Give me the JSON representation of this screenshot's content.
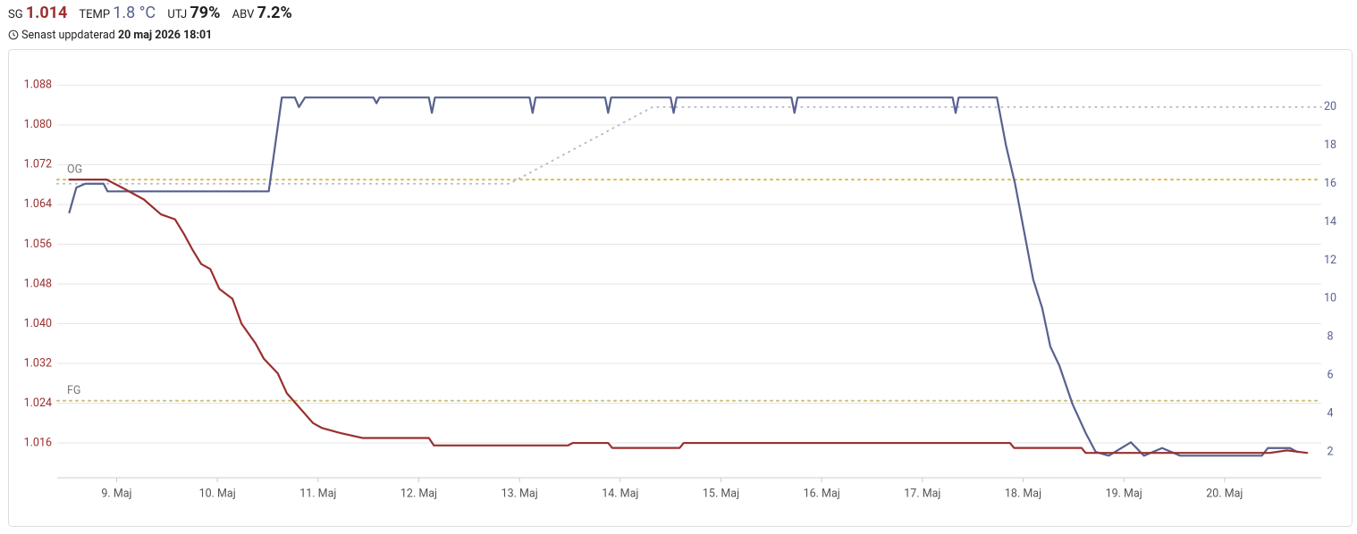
{
  "header": {
    "sg_value": "1.014",
    "temp_value": "1.8 °C",
    "utj_label": "UTJ",
    "utj_value": "79%",
    "abv_label": "ABV",
    "abv_value": "7.2%",
    "updated_label": "Senast uppdaterad",
    "updated_value": "20 maj 2026 18:01"
  },
  "chart_data": {
    "type": "line",
    "xlim": [
      8.41,
      20.96
    ],
    "xticks": [
      {
        "value": 9,
        "label": "9. Maj"
      },
      {
        "value": 10,
        "label": "10. Maj"
      },
      {
        "value": 11,
        "label": "11. Maj"
      },
      {
        "value": 12,
        "label": "12. Maj"
      },
      {
        "value": 13,
        "label": "13. Maj"
      },
      {
        "value": 14,
        "label": "14. Maj"
      },
      {
        "value": 15,
        "label": "15. Maj"
      },
      {
        "value": 16,
        "label": "16. Maj"
      },
      {
        "value": 17,
        "label": "17. Maj"
      },
      {
        "value": 18,
        "label": "18. Maj"
      },
      {
        "value": 19,
        "label": "19. Maj"
      },
      {
        "value": 20,
        "label": "20. Maj"
      }
    ],
    "ylim": [
      1.009,
      1.094
    ],
    "yticks": [
      1.016,
      1.024,
      1.032,
      {
        "value": 1.04,
        "label": "1.040"
      },
      1.048,
      1.056,
      1.064,
      1.072,
      {
        "value": 1.08,
        "label": "1.080"
      },
      1.088
    ],
    "y2lim": [
      0.65,
      22.7
    ],
    "y2ticks": [
      2,
      4,
      6,
      8,
      10,
      12,
      14,
      16,
      18,
      20
    ],
    "grid": true,
    "annotations": [
      {
        "label": "OG",
        "value": 1.069,
        "color": "#e0b94a"
      },
      {
        "label": "FG",
        "value": 1.0245,
        "color": "#c9c27a"
      }
    ],
    "series": [
      {
        "name": "SG",
        "color": "#9b2f2f",
        "x": [
          8.53,
          8.9,
          9.09,
          9.27,
          9.44,
          9.58,
          9.67,
          9.75,
          9.84,
          9.93,
          10.02,
          10.15,
          10.24,
          10.38,
          10.46,
          10.6,
          10.69,
          10.82,
          10.95,
          11.04,
          11.22,
          11.44,
          12.1,
          12.15,
          13.48,
          13.53,
          13.88,
          13.92,
          14.59,
          14.63,
          17.87,
          17.91,
          18.58,
          18.62,
          20.45,
          20.62,
          20.82
        ],
        "values": [
          1.069,
          1.069,
          1.067,
          1.065,
          1.062,
          1.061,
          1.058,
          1.055,
          1.052,
          1.051,
          1.047,
          1.045,
          1.04,
          1.036,
          1.033,
          1.03,
          1.026,
          1.023,
          1.02,
          1.019,
          1.018,
          1.017,
          1.017,
          1.0155,
          1.0155,
          1.016,
          1.016,
          1.015,
          1.015,
          1.016,
          1.016,
          1.015,
          1.015,
          1.014,
          1.014,
          1.0145,
          1.014
        ]
      },
      {
        "name": "TEMP",
        "color": "#56618f",
        "axis": "y2",
        "x": [
          8.53,
          8.6,
          8.69,
          8.87,
          8.91,
          10.51,
          10.64,
          10.77,
          10.81,
          10.87,
          11.55,
          11.58,
          11.61,
          12.1,
          12.13,
          12.16,
          13.1,
          13.13,
          13.16,
          13.85,
          13.88,
          13.91,
          14.5,
          14.53,
          14.56,
          15.7,
          15.73,
          15.76,
          17.3,
          17.33,
          17.36,
          17.74,
          17.83,
          17.92,
          18.01,
          18.1,
          18.19,
          18.27,
          18.36,
          18.49,
          18.62,
          18.72,
          18.85,
          19.07,
          19.2,
          19.38,
          19.56,
          20.37,
          20.43,
          20.65,
          20.72
        ],
        "values": [
          14.5,
          15.8,
          16,
          16,
          15.6,
          15.6,
          20.5,
          20.5,
          20,
          20.5,
          20.5,
          20.2,
          20.5,
          20.5,
          19.7,
          20.5,
          20.5,
          19.7,
          20.5,
          20.5,
          19.7,
          20.5,
          20.5,
          19.7,
          20.5,
          20.5,
          19.7,
          20.5,
          20.5,
          19.7,
          20.5,
          20.5,
          18,
          16,
          13.5,
          11,
          9.5,
          7.5,
          6.5,
          4.5,
          3,
          2,
          1.8,
          2.5,
          1.8,
          2.2,
          1.8,
          1.8,
          2.2,
          2.2,
          2
        ]
      },
      {
        "color": "#b8bcc8",
        "axis": "y2",
        "dotted": true,
        "x": [
          8.41,
          12.9,
          14.32,
          20.96
        ],
        "values": [
          16,
          16,
          20,
          20
        ]
      }
    ]
  }
}
